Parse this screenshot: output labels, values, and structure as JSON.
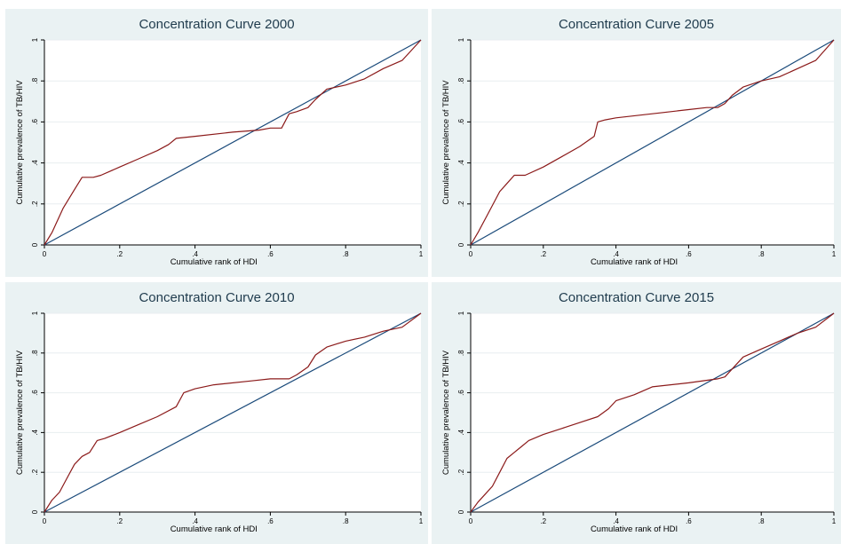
{
  "colors": {
    "panel_bg": "#eaf2f3",
    "plot_bg": "#ffffff",
    "gridline": "#e8eef0",
    "equality_line": "#1a4a7a",
    "curve": "#8b1a1a",
    "title_text": "#1f3b4d"
  },
  "chart_data": [
    {
      "type": "line",
      "title": "Concentration Curve 2000",
      "xlabel": "Cumulative rank of HDI",
      "ylabel": "Cumulative prevalence of TB/HIV",
      "xlim": [
        0,
        1
      ],
      "ylim": [
        0,
        1
      ],
      "xticks": [
        "0",
        ".2",
        ".4",
        ".6",
        ".8",
        "1"
      ],
      "yticks": [
        "0",
        ".2",
        ".4",
        ".6",
        ".8",
        "1"
      ],
      "grid": true,
      "series": [
        {
          "role": "equality",
          "x": [
            0,
            1
          ],
          "y": [
            0,
            1
          ]
        },
        {
          "role": "curve",
          "x": [
            0,
            0.02,
            0.05,
            0.08,
            0.1,
            0.13,
            0.15,
            0.2,
            0.25,
            0.3,
            0.33,
            0.35,
            0.4,
            0.5,
            0.57,
            0.6,
            0.63,
            0.65,
            0.67,
            0.7,
            0.72,
            0.75,
            0.8,
            0.85,
            0.9,
            0.95,
            1
          ],
          "y": [
            0,
            0.06,
            0.18,
            0.27,
            0.33,
            0.33,
            0.34,
            0.38,
            0.42,
            0.46,
            0.49,
            0.52,
            0.53,
            0.55,
            0.56,
            0.57,
            0.57,
            0.64,
            0.65,
            0.67,
            0.71,
            0.76,
            0.78,
            0.81,
            0.86,
            0.9,
            1
          ]
        }
      ]
    },
    {
      "type": "line",
      "title": "Concentration Curve 2005",
      "xlabel": "Cumulative rank of HDI",
      "ylabel": "Cumulative prevalence of TB/HIV",
      "xlim": [
        0,
        1
      ],
      "ylim": [
        0,
        1
      ],
      "xticks": [
        "0",
        ".2",
        ".4",
        ".6",
        ".8",
        "1"
      ],
      "yticks": [
        "0",
        ".2",
        ".4",
        ".6",
        ".8",
        "1"
      ],
      "grid": true,
      "series": [
        {
          "role": "equality",
          "x": [
            0,
            1
          ],
          "y": [
            0,
            1
          ]
        },
        {
          "role": "curve",
          "x": [
            0,
            0.02,
            0.05,
            0.08,
            0.1,
            0.12,
            0.15,
            0.2,
            0.25,
            0.3,
            0.34,
            0.35,
            0.37,
            0.4,
            0.5,
            0.6,
            0.65,
            0.68,
            0.7,
            0.72,
            0.75,
            0.8,
            0.85,
            0.9,
            0.95,
            1
          ],
          "y": [
            0,
            0.06,
            0.16,
            0.26,
            0.3,
            0.34,
            0.34,
            0.38,
            0.43,
            0.48,
            0.53,
            0.6,
            0.61,
            0.62,
            0.64,
            0.66,
            0.67,
            0.67,
            0.69,
            0.73,
            0.77,
            0.8,
            0.82,
            0.86,
            0.9,
            1
          ]
        }
      ]
    },
    {
      "type": "line",
      "title": "Concentration Curve 2010",
      "xlabel": "Cumulative rank of HDI",
      "ylabel": "Cumulative prevalence of TB/HIV",
      "xlim": [
        0,
        1
      ],
      "ylim": [
        0,
        1
      ],
      "xticks": [
        "0",
        ".2",
        ".4",
        ".6",
        ".8",
        "1"
      ],
      "yticks": [
        "0",
        ".2",
        ".4",
        ".6",
        ".8",
        "1"
      ],
      "grid": true,
      "series": [
        {
          "role": "equality",
          "x": [
            0,
            1
          ],
          "y": [
            0,
            1
          ]
        },
        {
          "role": "curve",
          "x": [
            0,
            0.02,
            0.04,
            0.06,
            0.08,
            0.1,
            0.12,
            0.14,
            0.16,
            0.2,
            0.25,
            0.3,
            0.35,
            0.37,
            0.4,
            0.45,
            0.55,
            0.6,
            0.65,
            0.67,
            0.7,
            0.72,
            0.75,
            0.8,
            0.85,
            0.9,
            0.95,
            1
          ],
          "y": [
            0,
            0.06,
            0.1,
            0.17,
            0.24,
            0.28,
            0.3,
            0.36,
            0.37,
            0.4,
            0.44,
            0.48,
            0.53,
            0.6,
            0.62,
            0.64,
            0.66,
            0.67,
            0.67,
            0.69,
            0.73,
            0.79,
            0.83,
            0.86,
            0.88,
            0.91,
            0.93,
            1
          ]
        }
      ]
    },
    {
      "type": "line",
      "title": "Concentration Curve 2015",
      "xlabel": "Cumulative rank of HDI",
      "ylabel": "Cumulative prevalence of TB/HIV",
      "xlim": [
        0,
        1
      ],
      "ylim": [
        0,
        1
      ],
      "xticks": [
        "0",
        ".2",
        ".4",
        ".6",
        ".8",
        "1"
      ],
      "yticks": [
        "0",
        ".2",
        ".4",
        ".6",
        ".8",
        "1"
      ],
      "grid": true,
      "series": [
        {
          "role": "equality",
          "x": [
            0,
            1
          ],
          "y": [
            0,
            1
          ]
        },
        {
          "role": "curve",
          "x": [
            0,
            0.02,
            0.04,
            0.06,
            0.08,
            0.1,
            0.12,
            0.14,
            0.16,
            0.2,
            0.25,
            0.3,
            0.35,
            0.38,
            0.4,
            0.45,
            0.5,
            0.6,
            0.68,
            0.7,
            0.72,
            0.75,
            0.8,
            0.85,
            0.9,
            0.95,
            1
          ],
          "y": [
            0,
            0.05,
            0.09,
            0.13,
            0.2,
            0.27,
            0.3,
            0.33,
            0.36,
            0.39,
            0.42,
            0.45,
            0.48,
            0.52,
            0.56,
            0.59,
            0.63,
            0.65,
            0.67,
            0.68,
            0.72,
            0.78,
            0.82,
            0.86,
            0.9,
            0.93,
            1
          ]
        }
      ]
    }
  ]
}
